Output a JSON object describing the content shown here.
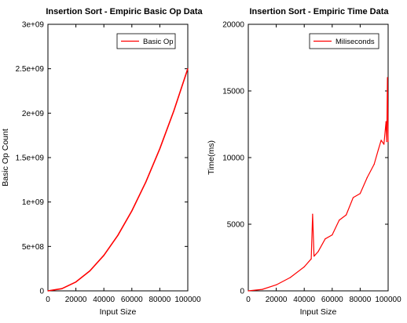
{
  "chart_data": [
    {
      "type": "line",
      "title": "Insertion Sort - Empiric Basic Op Data",
      "xlabel": "Input Size",
      "ylabel": "Basic Op Count",
      "xlim": [
        0,
        100000
      ],
      "ylim": [
        0,
        3000000000
      ],
      "xticks": [
        0,
        20000,
        40000,
        60000,
        80000,
        100000
      ],
      "xtick_labels": [
        "0",
        "20000",
        "40000",
        "60000",
        "80000",
        "100000"
      ],
      "yticks": [
        0,
        500000000,
        1000000000,
        1500000000,
        2000000000,
        2500000000,
        3000000000
      ],
      "ytick_labels": [
        "0",
        "5e+08",
        "1e+09",
        "1.5e+09",
        "2e+09",
        "2.5e+09",
        "3e+09"
      ],
      "grid": false,
      "legend_position": "top-right",
      "series": [
        {
          "name": "Basic Op",
          "color": "#ff0000",
          "x": [
            0,
            10000,
            20000,
            30000,
            40000,
            50000,
            60000,
            70000,
            80000,
            90000,
            100000
          ],
          "y": [
            0,
            25000000,
            100000000,
            225000000,
            400000000,
            625000000,
            900000000,
            1225000000,
            1600000000,
            2025000000,
            2500000000
          ]
        }
      ]
    },
    {
      "type": "line",
      "title": "Insertion Sort - Empiric Time Data",
      "xlabel": "Input Size",
      "ylabel": "Time(ms)",
      "xlim": [
        0,
        100000
      ],
      "ylim": [
        0,
        20000
      ],
      "xticks": [
        0,
        20000,
        40000,
        60000,
        80000,
        100000
      ],
      "xtick_labels": [
        "0",
        "20000",
        "40000",
        "60000",
        "80000",
        "100000"
      ],
      "yticks": [
        0,
        5000,
        10000,
        15000,
        20000
      ],
      "ytick_labels": [
        "0",
        "5000",
        "10000",
        "15000",
        "20000"
      ],
      "grid": false,
      "legend_position": "top-right",
      "series": [
        {
          "name": "Miliseconds",
          "color": "#ff0000",
          "x": [
            0,
            10000,
            20000,
            30000,
            40000,
            45000,
            46000,
            47000,
            50000,
            55000,
            60000,
            65000,
            70000,
            75000,
            80000,
            85000,
            90000,
            93000,
            95000,
            97000,
            98500,
            99000,
            99500,
            100000
          ],
          "y": [
            0,
            110,
            450,
            1000,
            1800,
            2400,
            5750,
            2600,
            2950,
            3900,
            4200,
            5300,
            5700,
            7000,
            7300,
            8500,
            9500,
            10600,
            11300,
            11000,
            12700,
            11200,
            16000,
            11200
          ]
        }
      ]
    }
  ]
}
